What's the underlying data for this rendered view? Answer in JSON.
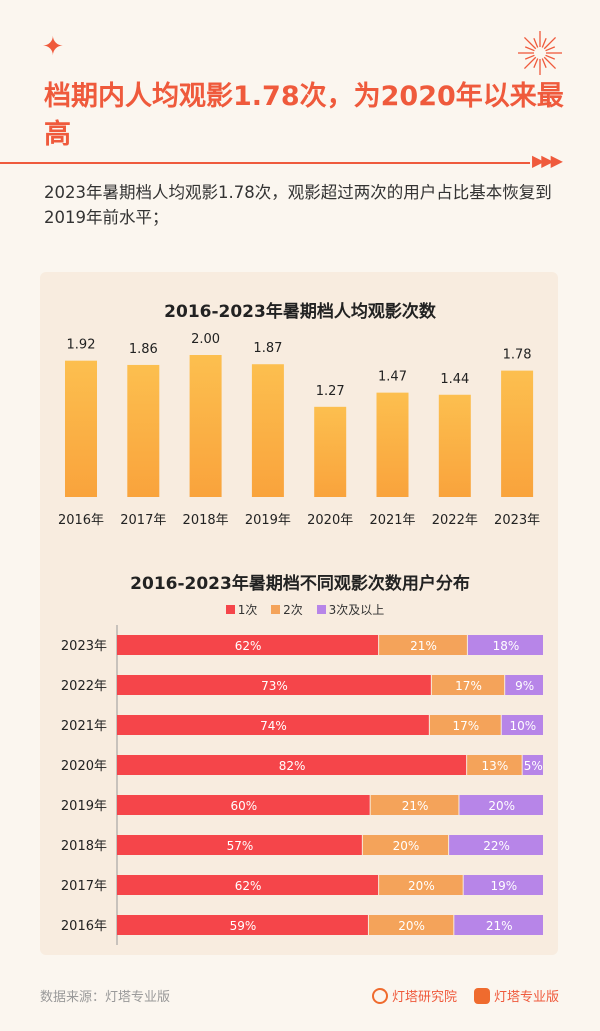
{
  "header": {
    "title": "档期内人均观影1.78次，为2020年以来最高",
    "subtitle": "2023年暑期档人均观影1.78次，观影超过两次的用户占比基本恢复到2019年前水平；"
  },
  "chart_data": [
    {
      "type": "bar",
      "title": "2016-2023年暑期档人均观影次数",
      "categories": [
        "2016年",
        "2017年",
        "2018年",
        "2019年",
        "2020年",
        "2021年",
        "2022年",
        "2023年"
      ],
      "values": [
        1.92,
        1.86,
        2.0,
        1.87,
        1.27,
        1.47,
        1.44,
        1.78
      ],
      "labels": [
        "1.92",
        "1.86",
        "2.00",
        "1.87",
        "1.27",
        "1.47",
        "1.44",
        "1.78"
      ],
      "ylim": [
        0,
        2.0
      ],
      "grid": false,
      "color": "#fbb347"
    },
    {
      "type": "bar",
      "orientation": "horizontal",
      "stacked": true,
      "title": "2016-2023年暑期档不同观影次数用户分布",
      "legend_position": "top",
      "categories": [
        "2023年",
        "2022年",
        "2021年",
        "2020年",
        "2019年",
        "2018年",
        "2017年",
        "2016年"
      ],
      "series": [
        {
          "name": "1次",
          "color": "#f5454a",
          "values": [
            62,
            73,
            74,
            82,
            60,
            57,
            62,
            59
          ]
        },
        {
          "name": "2次",
          "color": "#f4a35a",
          "values": [
            21,
            17,
            17,
            13,
            21,
            20,
            20,
            20
          ]
        },
        {
          "name": "3次及以上",
          "color": "#b785e8",
          "values": [
            18,
            9,
            10,
            5,
            20,
            22,
            19,
            21
          ]
        }
      ]
    }
  ],
  "footer": {
    "source": "数据来源：灯塔专业版",
    "brand1": "灯塔研究院",
    "brand2": "灯塔专业版"
  }
}
